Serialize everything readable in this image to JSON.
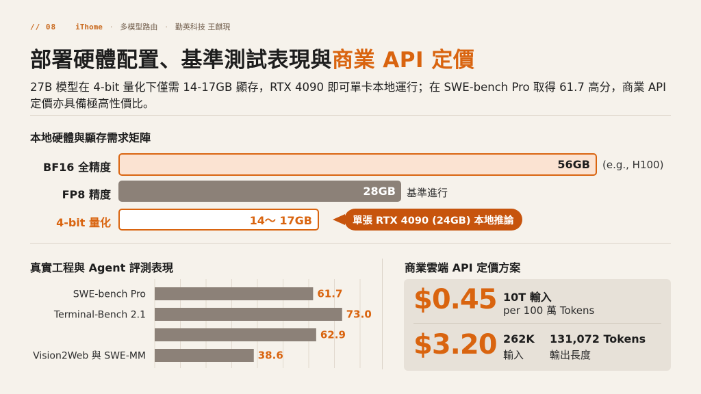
{
  "header": {
    "slide_number": "// 08",
    "brand": "iThome",
    "separator": "·",
    "topic": "多模型路由",
    "author": "勤英科技 王麒現"
  },
  "title": {
    "main": "部署硬體配置、基準測試表現與",
    "accent": "商業 API 定價"
  },
  "subtitle": "27B 模型在 4-bit 量化下僅需 14-17GB 顯存，RTX 4090 即可單卡本地運行；在 SWE-bench Pro 取得 61.7 高分，商業 API 定價亦具備極高性價比。",
  "hardware": {
    "heading": "本地硬體與顯存需求矩陣",
    "rows": [
      {
        "label": "BF16 全精度",
        "value": "56GB",
        "note": "(e.g., H100)"
      },
      {
        "label": "FP8 精度",
        "value": "28GB",
        "note": "基準進行"
      },
      {
        "label": "4-bit 量化",
        "value": "14～ 17GB",
        "note": "單張 RTX 4090 (24GB) 本地推論"
      }
    ]
  },
  "benchmarks": {
    "heading": "真實工程與 Agent 評測表現",
    "bar_color": "#8c8178",
    "value_color": "#d9640f"
  },
  "chart_data": {
    "type": "bar",
    "orientation": "horizontal",
    "categories": [
      "SWE-bench Pro",
      "Terminal-Bench 2.1",
      "",
      "Vision2Web 與 SWE-MM"
    ],
    "values": [
      61.7,
      73.0,
      62.9,
      38.6
    ],
    "value_labels": [
      "61.7",
      "73.0",
      "62.9",
      "38.6"
    ],
    "xlim": [
      0,
      80
    ],
    "grid": true
  },
  "pricing": {
    "heading": "商業雲端 API 定價方案",
    "input_price": "$0.45",
    "input_tokens": "10T 輸入",
    "input_unit": "per 100 萬 Tokens",
    "output_price": "$3.20",
    "context_value": "262K",
    "context_label": "輸入",
    "output_value": "131,072 Tokens",
    "output_label": "輸出長度"
  },
  "colors": {
    "accent": "#d9640f",
    "bar_gray": "#8c8178",
    "background": "#f6f2eb"
  }
}
